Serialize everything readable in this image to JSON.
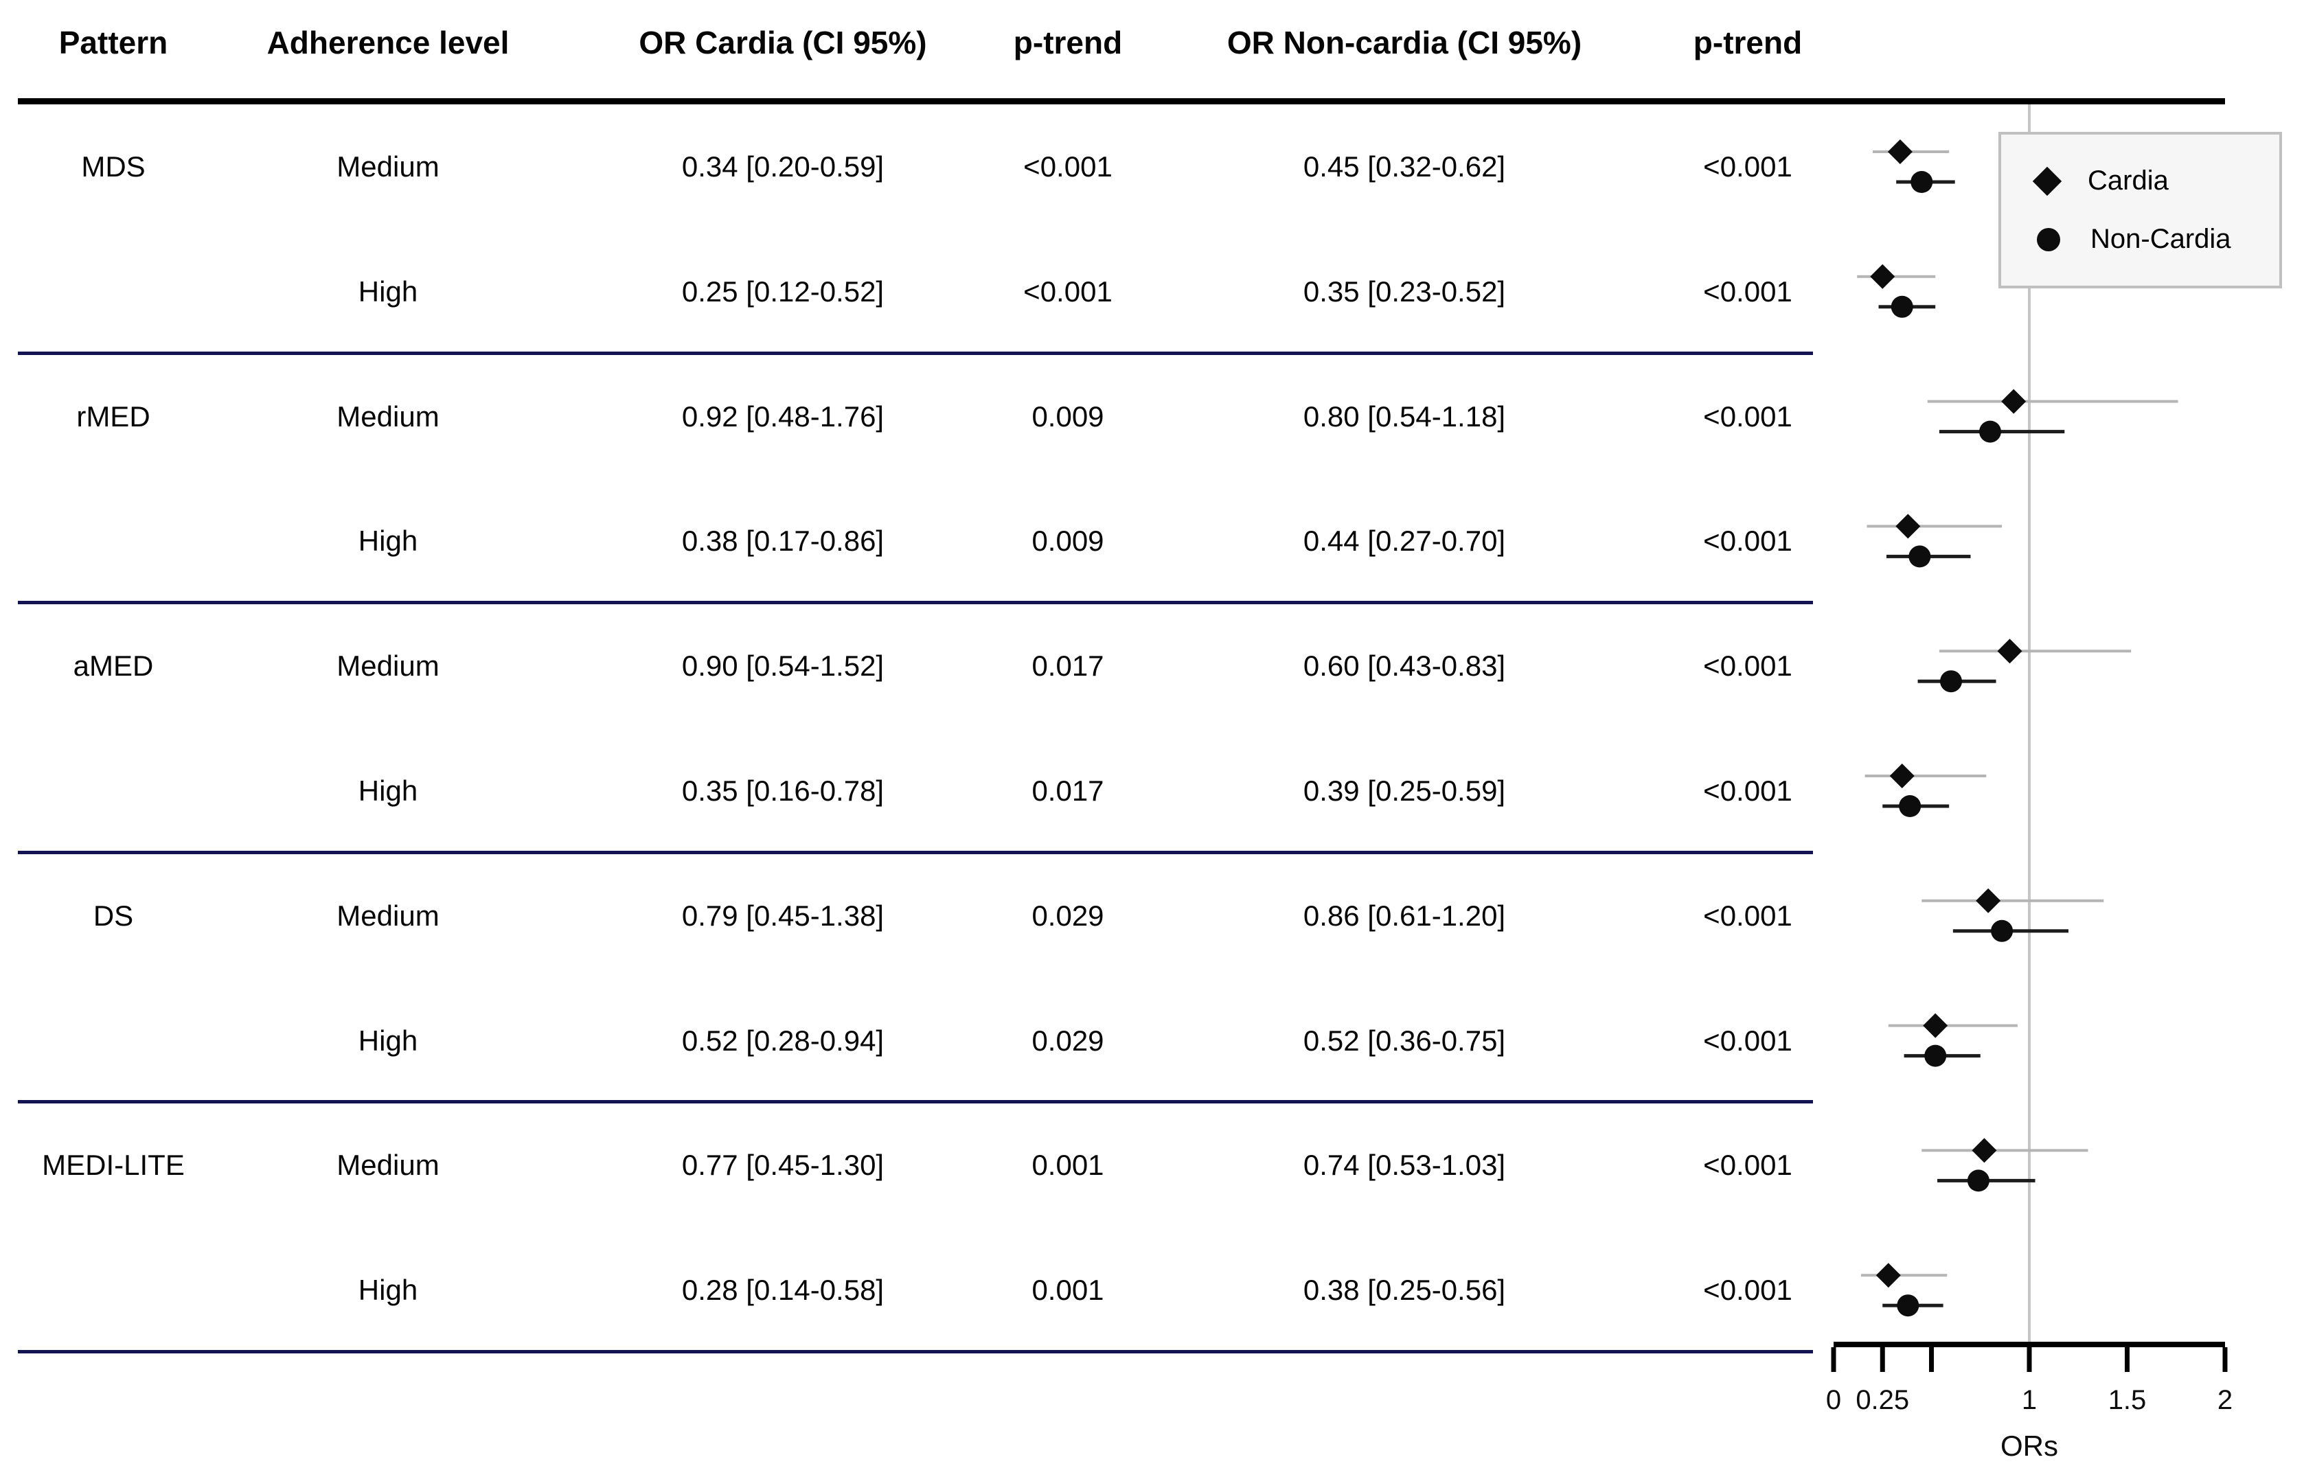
{
  "table": {
    "headers": [
      "Pattern",
      "Adherence level",
      "OR Cardia (CI 95%)",
      "p-trend",
      "OR Non-cardia (CI 95%)",
      "p-trend"
    ]
  },
  "chart_data": {
    "type": "scatter",
    "subtype": "forest-plot",
    "xlabel": "ORs",
    "xlim": [
      0,
      2
    ],
    "x_ticks": [
      {
        "value": 0,
        "label": "0"
      },
      {
        "value": 0.25,
        "label": "0.25"
      },
      {
        "value": 0.5,
        "label": ""
      },
      {
        "value": 1,
        "label": "1"
      },
      {
        "value": 1.5,
        "label": "1.5"
      },
      {
        "value": 2,
        "label": "2"
      }
    ],
    "reference_line_x": 1,
    "legend": [
      {
        "marker": "diamond",
        "label": "Cardia"
      },
      {
        "marker": "circle",
        "label": "Non-Cardia"
      }
    ],
    "groups": [
      {
        "pattern": "MDS",
        "rows": [
          {
            "level": "Medium",
            "cardia": {
              "or": 0.34,
              "ci": [
                0.2,
                0.59
              ],
              "p_trend": "<0.001"
            },
            "noncardia": {
              "or": 0.45,
              "ci": [
                0.32,
                0.62
              ],
              "p_trend": "<0.001"
            }
          },
          {
            "level": "High",
            "cardia": {
              "or": 0.25,
              "ci": [
                0.12,
                0.52
              ],
              "p_trend": "<0.001"
            },
            "noncardia": {
              "or": 0.35,
              "ci": [
                0.23,
                0.52
              ],
              "p_trend": "<0.001"
            }
          }
        ]
      },
      {
        "pattern": "rMED",
        "rows": [
          {
            "level": "Medium",
            "cardia": {
              "or": 0.92,
              "ci": [
                0.48,
                1.76
              ],
              "p_trend": "0.009"
            },
            "noncardia": {
              "or": 0.8,
              "ci": [
                0.54,
                1.18
              ],
              "p_trend": "<0.001"
            }
          },
          {
            "level": "High",
            "cardia": {
              "or": 0.38,
              "ci": [
                0.17,
                0.86
              ],
              "p_trend": "0.009"
            },
            "noncardia": {
              "or": 0.44,
              "ci": [
                0.27,
                0.7
              ],
              "p_trend": "<0.001"
            }
          }
        ]
      },
      {
        "pattern": "aMED",
        "rows": [
          {
            "level": "Medium",
            "cardia": {
              "or": 0.9,
              "ci": [
                0.54,
                1.52
              ],
              "p_trend": "0.017"
            },
            "noncardia": {
              "or": 0.6,
              "ci": [
                0.43,
                0.83
              ],
              "p_trend": "<0.001"
            }
          },
          {
            "level": "High",
            "cardia": {
              "or": 0.35,
              "ci": [
                0.16,
                0.78
              ],
              "p_trend": "0.017"
            },
            "noncardia": {
              "or": 0.39,
              "ci": [
                0.25,
                0.59
              ],
              "p_trend": "<0.001"
            }
          }
        ]
      },
      {
        "pattern": "DS",
        "rows": [
          {
            "level": "Medium",
            "cardia": {
              "or": 0.79,
              "ci": [
                0.45,
                1.38
              ],
              "p_trend": "0.029"
            },
            "noncardia": {
              "or": 0.86,
              "ci": [
                0.61,
                1.2
              ],
              "p_trend": "<0.001"
            }
          },
          {
            "level": "High",
            "cardia": {
              "or": 0.52,
              "ci": [
                0.28,
                0.94
              ],
              "p_trend": "0.029"
            },
            "noncardia": {
              "or": 0.52,
              "ci": [
                0.36,
                0.75
              ],
              "p_trend": "<0.001"
            }
          }
        ]
      },
      {
        "pattern": "MEDI-LITE",
        "rows": [
          {
            "level": "Medium",
            "cardia": {
              "or": 0.77,
              "ci": [
                0.45,
                1.3
              ],
              "p_trend": "0.001"
            },
            "noncardia": {
              "or": 0.74,
              "ci": [
                0.53,
                1.03
              ],
              "p_trend": "<0.001"
            }
          },
          {
            "level": "High",
            "cardia": {
              "or": 0.28,
              "ci": [
                0.14,
                0.58
              ],
              "p_trend": "0.001"
            },
            "noncardia": {
              "or": 0.38,
              "ci": [
                0.25,
                0.56
              ],
              "p_trend": "<0.001"
            }
          }
        ]
      }
    ]
  },
  "colors": {
    "text": "#060606",
    "header_rule": "#000000",
    "group_separator": "#141452",
    "reference_line": "#c6c6c6",
    "cardia_ci_line": "#b5b5b5",
    "noncardia_ci_line": "#1c1c1c",
    "marker_fill": "#0d0d0d",
    "legend_border": "#c0c0c0",
    "legend_bg": "#f6f6f6"
  }
}
